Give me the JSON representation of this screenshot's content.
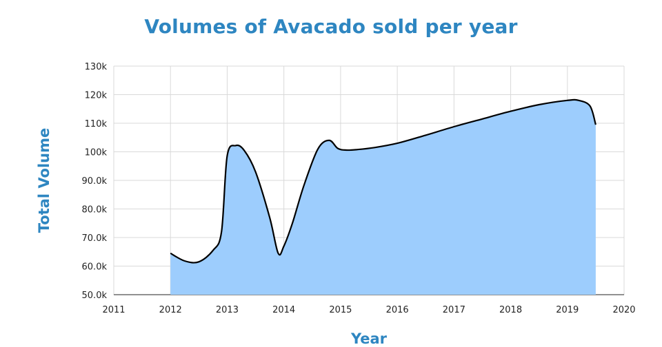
{
  "chart_data": {
    "type": "area",
    "title": "Volumes of Avacado sold per year",
    "xlabel": "Year",
    "ylabel": "Total Volume",
    "xlim": [
      2011,
      2020
    ],
    "ylim": [
      50000,
      130000
    ],
    "x_ticks": [
      "2011",
      "2012",
      "2013",
      "2014",
      "2015",
      "2016",
      "2017",
      "2018",
      "2019",
      "2020"
    ],
    "y_ticks": [
      "50.0k",
      "60.0k",
      "70.0k",
      "80.0k",
      "90.0k",
      "100k",
      "110k",
      "120k",
      "130k"
    ],
    "grid": true,
    "legend": "none",
    "fill_color": "#9dcdfd",
    "line_color": "#000000",
    "series": [
      {
        "x": [
          2012.0,
          2012.25,
          2012.5,
          2012.75,
          2012.9,
          2013.0,
          2013.15,
          2013.3,
          2013.5,
          2013.75,
          2013.9,
          2014.0,
          2014.15,
          2014.35,
          2014.6,
          2014.8,
          2014.95,
          2015.1,
          2015.3,
          2015.6,
          2016.0,
          2016.5,
          2017.0,
          2017.5,
          2018.0,
          2018.5,
          2019.0,
          2019.2,
          2019.4,
          2019.5
        ],
        "y": [
          64500,
          61800,
          61500,
          65500,
          72000,
          98500,
          102200,
          100500,
          93000,
          77000,
          64500,
          67000,
          75000,
          88000,
          101000,
          104000,
          101200,
          100600,
          100800,
          101500,
          103000,
          105800,
          108800,
          111500,
          114200,
          116500,
          118000,
          118000,
          116000,
          109500
        ]
      }
    ]
  }
}
